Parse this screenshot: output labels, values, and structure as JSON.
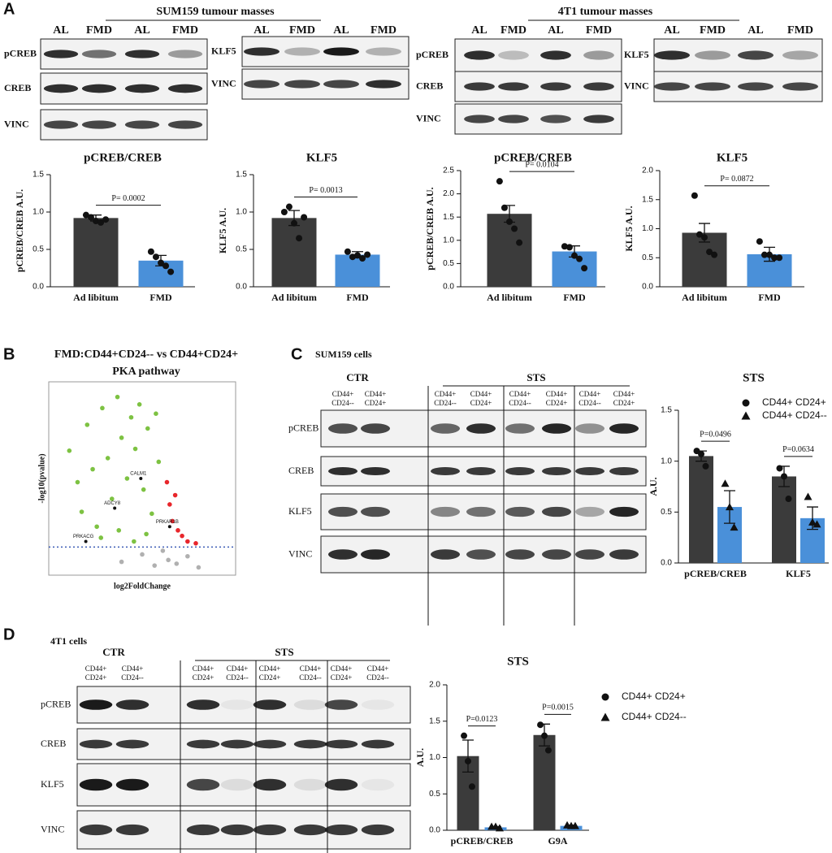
{
  "panel_labels": [
    "A",
    "B",
    "C",
    "D"
  ],
  "panel_a": {
    "sum159": {
      "title": "SUM159 tumour masses",
      "lanes": [
        "AL",
        "FMD",
        "AL",
        "FMD",
        "AL",
        "FMD",
        "AL",
        "FMD"
      ],
      "rows_left": [
        "pCREB",
        "CREB",
        "VINC"
      ],
      "rows_right": [
        "KLF5",
        "VINC"
      ]
    },
    "t4t1": {
      "title": "4T1 tumour masses",
      "lanes": [
        "AL",
        "FMD",
        "AL",
        "FMD",
        "AL",
        "FMD",
        "AL",
        "FMD"
      ],
      "rows_left": [
        "pCREB",
        "CREB",
        "VINC"
      ],
      "rows_right": [
        "KLF5",
        "VINC"
      ]
    }
  },
  "panel_c": {
    "title": "SUM159 cells",
    "groups": [
      "CTR",
      "STS"
    ],
    "lanes": [
      [
        "CD44+",
        "CD24--"
      ],
      [
        "CD44+",
        "CD24+"
      ],
      [
        "CD44+",
        "CD24--"
      ],
      [
        "CD44+",
        "CD24+"
      ],
      [
        "CD44+",
        "CD24--"
      ],
      [
        "CD44+",
        "CD24+"
      ],
      [
        "CD44+",
        "CD24--"
      ],
      [
        "CD44+",
        "CD24+"
      ]
    ],
    "rows": [
      "pCREB",
      "CREB",
      "KLF5",
      "VINC"
    ]
  },
  "panel_d": {
    "title": "4T1 cells",
    "groups": [
      "CTR",
      "STS"
    ],
    "lanes": [
      [
        "CD44+",
        "CD24+"
      ],
      [
        "CD44+",
        "CD24--"
      ],
      [
        "CD44+",
        "CD24+"
      ],
      [
        "CD44+",
        "CD24--"
      ],
      [
        "CD44+",
        "CD24+"
      ],
      [
        "CD44+",
        "CD24--"
      ],
      [
        "CD44+",
        "CD24+"
      ],
      [
        "CD44+",
        "CD24--"
      ]
    ],
    "rows": [
      "pCREB",
      "CREB",
      "KLF5",
      "VINC"
    ]
  },
  "chart_data": [
    {
      "type": "bar",
      "title": "pCREB/CREB",
      "ylabel": "pCREB/CREB A.U.",
      "categories": [
        "Ad libitum",
        "FMD"
      ],
      "values": [
        0.92,
        0.35
      ],
      "errors": [
        0.04,
        0.07
      ],
      "colors": [
        "#3b3b3b",
        "#4a90d9"
      ],
      "points": [
        [
          0.96,
          0.93,
          0.88,
          0.86,
          0.9
        ],
        [
          0.47,
          0.4,
          0.32,
          0.28,
          0.2
        ]
      ],
      "ylim": [
        0,
        1.5
      ],
      "yticks": [
        {
          "value": 0,
          "label": "0.0"
        },
        0.5,
        {
          "value": 1,
          "label": "1.0"
        },
        1.5
      ],
      "annotations": [
        "P= 0.0002"
      ]
    },
    {
      "type": "bar",
      "title": "KLF5",
      "ylabel": "KLF5 A.U.",
      "categories": [
        "Ad libitum",
        "FMD"
      ],
      "values": [
        0.92,
        0.43
      ],
      "errors": [
        0.1,
        0.04
      ],
      "colors": [
        "#3b3b3b",
        "#4a90d9"
      ],
      "points": [
        [
          1.0,
          1.07,
          0.85,
          0.65,
          0.93
        ],
        [
          0.47,
          0.4,
          0.42,
          0.38,
          0.43
        ]
      ],
      "ylim": [
        0,
        1.5
      ],
      "yticks": [
        {
          "value": 0,
          "label": "0.0"
        },
        0.5,
        {
          "value": 1,
          "label": "1.0"
        },
        1.5
      ],
      "annotations": [
        "P= 0.0013"
      ]
    },
    {
      "type": "bar",
      "title": "pCREB/CREB",
      "ylabel": "pCREB/CREB A.U.",
      "categories": [
        "Ad libitum",
        "FMD"
      ],
      "values": [
        1.57,
        0.76
      ],
      "errors": [
        0.18,
        0.12
      ],
      "colors": [
        "#3b3b3b",
        "#4a90d9"
      ],
      "points": [
        [
          2.27,
          1.7,
          1.4,
          1.25,
          0.95
        ],
        [
          0.87,
          0.85,
          0.67,
          0.6,
          0.4
        ]
      ],
      "ylim": [
        0,
        2.5
      ],
      "yticks": [
        {
          "value": 0,
          "label": "0.0"
        },
        0.5,
        {
          "value": 1,
          "label": "1.0"
        },
        1.5,
        {
          "value": 2,
          "label": "2.0"
        },
        2.5
      ],
      "annotations": [
        "P= 0.0104"
      ]
    },
    {
      "type": "bar",
      "title": "KLF5",
      "ylabel": "KLF5 A.U.",
      "categories": [
        "Ad libitum",
        "FMD"
      ],
      "values": [
        0.93,
        0.56
      ],
      "errors": [
        0.16,
        0.12
      ],
      "colors": [
        "#3b3b3b",
        "#4a90d9"
      ],
      "points": [
        [
          1.57,
          0.9,
          0.85,
          0.6,
          0.55
        ],
        [
          0.78,
          0.55,
          0.55,
          0.5,
          0.5
        ]
      ],
      "ylim": [
        0,
        2
      ],
      "yticks": [
        {
          "value": 0,
          "label": "0.0"
        },
        0.5,
        {
          "value": 1,
          "label": "1.0"
        },
        1.5,
        {
          "value": 2,
          "label": "2.0"
        }
      ],
      "annotations": [
        "P= 0.0872"
      ]
    },
    {
      "type": "scatter",
      "title": "FMD:CD44+CD24-- vs CD44+CD24+",
      "subtitle": "PKA pathway",
      "xlabel": "log2FoldChange",
      "ylabel": "-log10(pvalue)",
      "xlim": [
        -8,
        5
      ],
      "ylim": [
        0,
        10
      ],
      "threshold": 1.3,
      "series": [
        {
          "color": "#7dc242",
          "x": [
            -6.8,
            -6.2,
            -5.9,
            -5.5,
            -5.1,
            -4.8,
            -4.4,
            -4.0,
            -3.7,
            -3.3,
            -3.0,
            -2.6,
            -2.3,
            -2.0,
            -1.7,
            -1.4,
            -1.1,
            -0.8,
            -0.5,
            -0.3,
            -4.5,
            -3.2,
            -2.1,
            -1.2
          ],
          "values": [
            6.5,
            4.8,
            3.2,
            7.9,
            5.5,
            2.4,
            8.8,
            6.1,
            3.9,
            9.4,
            7.2,
            5.0,
            8.3,
            6.6,
            9.0,
            4.4,
            7.7,
            3.1,
            8.5,
            5.9,
            1.8,
            2.2,
            1.6,
            2.0
          ]
        },
        {
          "color": "#e8262b",
          "x": [
            0.3,
            0.5,
            0.7,
            0.9,
            1.1,
            1.4,
            1.8,
            2.4
          ],
          "values": [
            4.8,
            3.6,
            2.7,
            4.1,
            2.2,
            1.9,
            1.6,
            1.5
          ]
        },
        {
          "color": "#b0b0b0",
          "x": [
            -3.0,
            -1.5,
            -0.6,
            0.0,
            0.4,
            1.0,
            1.8,
            2.6
          ],
          "values": [
            0.5,
            0.9,
            0.3,
            1.1,
            0.6,
            0.4,
            0.8,
            0.2
          ]
        }
      ],
      "annotations": [
        {
          "text": "CALM1",
          "x": -1.6,
          "y": 5
        },
        {
          "text": "ADCY8",
          "x": -3.5,
          "y": 3.4
        },
        {
          "text": "PRKACG",
          "x": -5.6,
          "y": 1.6
        },
        {
          "text": "PRKAR1B",
          "x": 0.5,
          "y": 2.4
        }
      ]
    },
    {
      "type": "bar",
      "title": "STS",
      "ylabel": "A.U.",
      "categories": [
        "pCREB/CREB",
        "KLF5"
      ],
      "series": [
        {
          "name": "CD44+ CD24+",
          "color": "#3b3b3b",
          "marker": "circle",
          "values": [
            1.05,
            0.85
          ],
          "errors": [
            0.05,
            0.1
          ],
          "points": [
            [
              1.1,
              1.07,
              0.95
            ],
            [
              0.93,
              0.85,
              0.63
            ]
          ]
        },
        {
          "name": "CD44+ CD24--",
          "color": "#4a90d9",
          "marker": "triangle",
          "values": [
            0.55,
            0.44
          ],
          "errors": [
            0.16,
            0.11
          ],
          "points": [
            [
              0.78,
              0.55,
              0.35
            ],
            [
              0.65,
              0.4,
              0.38
            ]
          ]
        }
      ],
      "ylim": [
        0,
        1.5
      ],
      "yticks": [
        {
          "value": 0,
          "label": "0.0"
        },
        0.5,
        {
          "value": 1,
          "label": "1.0"
        },
        1.5
      ],
      "annotations": [
        "P=0.0496",
        "P=0.0634"
      ]
    },
    {
      "type": "bar",
      "title": "STS",
      "ylabel": "A.U.",
      "categories": [
        "pCREB/CREB",
        "G9A"
      ],
      "series": [
        {
          "name": "CD44+ CD24+",
          "color": "#3b3b3b",
          "marker": "circle",
          "values": [
            1.02,
            1.31
          ],
          "errors": [
            0.22,
            0.15
          ],
          "points": [
            [
              1.3,
              0.95,
              0.6
            ],
            [
              1.45,
              1.3,
              1.1
            ]
          ]
        },
        {
          "name": "CD44+ CD24--",
          "color": "#4a90d9",
          "marker": "triangle",
          "values": [
            0.04,
            0.06
          ],
          "errors": [
            0.01,
            0.01
          ],
          "points": [
            [
              0.05,
              0.05,
              0.03
            ],
            [
              0.07,
              0.06,
              0.06
            ]
          ]
        }
      ],
      "ylim": [
        0,
        2
      ],
      "yticks": [
        {
          "value": 0,
          "label": "0.0"
        },
        0.5,
        {
          "value": 1,
          "label": "1.0"
        },
        1.5,
        {
          "value": 2,
          "label": "2.0"
        }
      ],
      "annotations": [
        "P=0.0123",
        "P=0.0015"
      ]
    }
  ]
}
